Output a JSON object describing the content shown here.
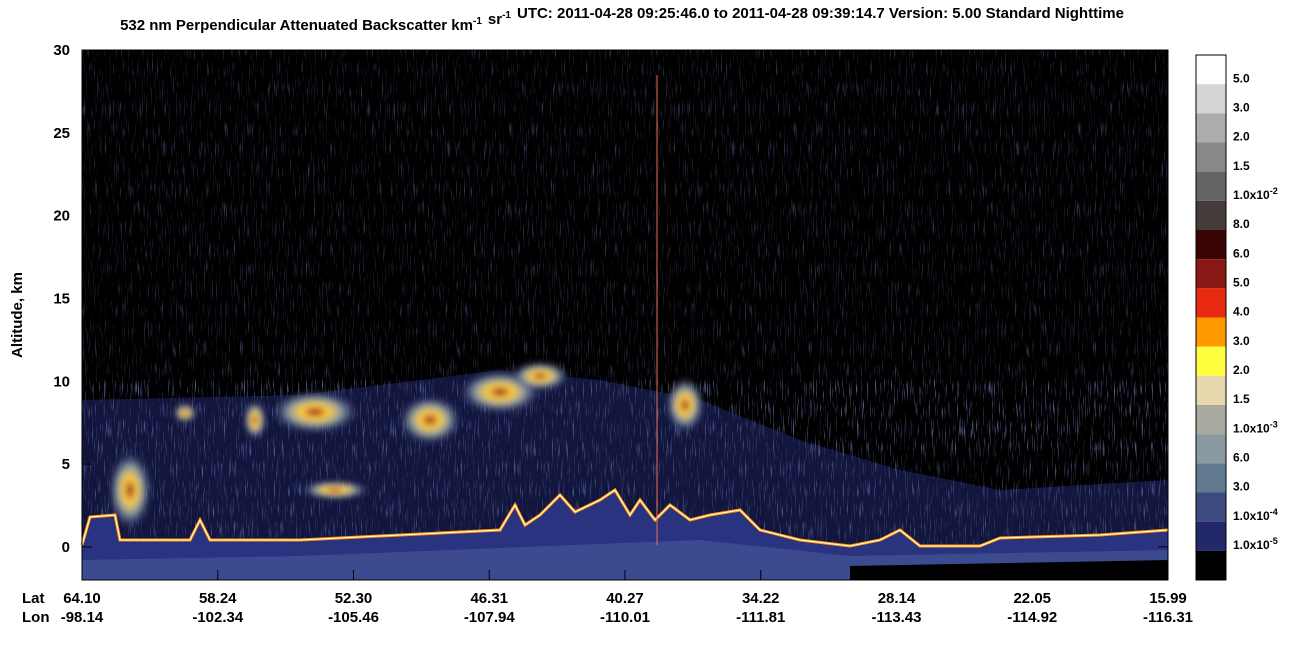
{
  "chart_data": {
    "type": "curtain",
    "title": [
      {
        "text": "532 nm Perpendicular Attenuated Backscatter km",
        "sup": "-1"
      },
      {
        "text": "sr",
        "sup": "-1"
      },
      {
        "text": "UTC: 2011-04-28 09:25:46.0 to 2011-04-28 09:39:14.7  Version: 5.00 Standard Nighttime"
      }
    ],
    "ylabel": "Altitude, km",
    "ylim": [
      -2,
      30
    ],
    "yticks": [
      0,
      5,
      10,
      15,
      20,
      25,
      30
    ],
    "x_rows": [
      {
        "name": "Lat",
        "labels": [
          "64.10",
          "58.24",
          "52.30",
          "46.31",
          "40.27",
          "34.22",
          "28.14",
          "22.05",
          "15.99"
        ]
      },
      {
        "name": "Lon",
        "labels": [
          "-98.14",
          "-102.34",
          "-105.46",
          "-107.94",
          "-110.01",
          "-111.81",
          "-113.43",
          "-114.92",
          "-116.31"
        ]
      }
    ],
    "colorbar": {
      "colors": [
        "#ffffff",
        "#d6d6d6",
        "#acacac",
        "#888888",
        "#646464",
        "#463c3c",
        "#3a0404",
        "#8a1814",
        "#e82a10",
        "#ff9a00",
        "#ffff40",
        "#e8d8ae",
        "#a8aaa0",
        "#8a9aa2",
        "#627a90",
        "#3c4a80",
        "#22286a",
        "#000000"
      ],
      "labels": [
        {
          "text": "5.0"
        },
        {
          "text": "3.0"
        },
        {
          "text": "2.0"
        },
        {
          "text": "1.5"
        },
        {
          "text": "1.0x10",
          "sup": "-2"
        },
        {
          "text": "8.0"
        },
        {
          "text": "6.0"
        },
        {
          "text": "5.0"
        },
        {
          "text": "4.0"
        },
        {
          "text": "3.0"
        },
        {
          "text": "2.0"
        },
        {
          "text": "1.5"
        },
        {
          "text": "1.0x10",
          "sup": "-3"
        },
        {
          "text": "6.0"
        },
        {
          "text": "3.0"
        },
        {
          "text": "1.0x10",
          "sup": "-4"
        },
        {
          "text": "1.0x10",
          "sup": "-5"
        }
      ]
    }
  }
}
